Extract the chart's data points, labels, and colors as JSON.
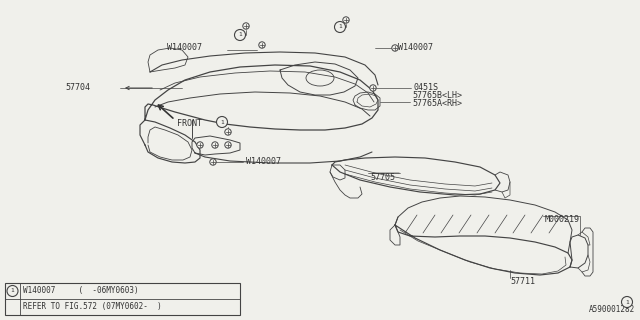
{
  "bg_color": "#f0f0eb",
  "line_color": "#444444",
  "text_color": "#333333",
  "diagram_id": "A590001282",
  "parts": {
    "bumper": "57704",
    "absorber": "57705",
    "beam": "57711",
    "bracket": "M000219",
    "clip_rh": "57765A<RH>",
    "clip_lh": "57765B<LH>",
    "bolt": "0451S",
    "bolt_w": "W140007"
  },
  "legend_row1": "W140007     (  -06MY0603)",
  "legend_row2": "REFER TO FIG.572 (07MY0602-  )"
}
